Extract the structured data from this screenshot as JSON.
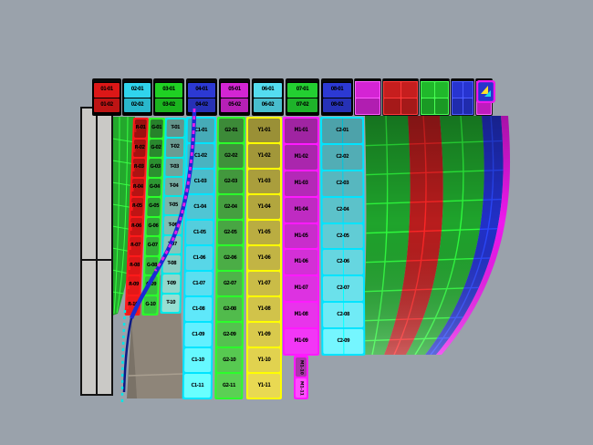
{
  "viewport": {
    "background": "#9aa2ab"
  },
  "left_panel": {
    "fill": "#cac9c6",
    "outline": "#131313"
  },
  "header_row": {
    "blocks": [
      {
        "id": "hb1",
        "color": "#d81717",
        "labels": [
          "01-01",
          "01-02"
        ]
      },
      {
        "id": "hb2",
        "color": "#2fd0e8",
        "labels": [
          "02-01",
          "02-02"
        ]
      },
      {
        "id": "hb3",
        "color": "#1ecc22",
        "labels": [
          "03-01",
          "03-02"
        ]
      },
      {
        "id": "hb4",
        "color": "#2b38cf",
        "labels": [
          "04-01",
          "04-02"
        ]
      },
      {
        "id": "hb5",
        "color": "#cf24cf",
        "labels": [
          "05-01",
          "05-02"
        ]
      },
      {
        "id": "hb6",
        "color": "#52d8ea",
        "labels": [
          "06-01",
          "06-02"
        ]
      },
      {
        "id": "hb7",
        "color": "#22cb30",
        "labels": [
          "07-01",
          "07-02"
        ]
      },
      {
        "id": "hb8",
        "color": "#2b38cf",
        "labels": [
          "08-01",
          "08-02"
        ]
      }
    ]
  },
  "bowl_top": {
    "blocks": [
      {
        "id": "bt-magenta",
        "color": "#d023d0",
        "line": "#ff5cff"
      },
      {
        "id": "bt-red",
        "color": "#c21d1d",
        "line": "#ff3a3a"
      },
      {
        "id": "bt-green",
        "color": "#1fb42a",
        "line": "#49ff55"
      },
      {
        "id": "bt-blue",
        "color": "#2633cc",
        "line": "#4b5cff"
      },
      {
        "id": "bt-rim",
        "color": "#e020e0",
        "line": "#ff6cff"
      }
    ]
  },
  "strips": [
    {
      "id": "red",
      "border": "#ff1a1a",
      "fill": "#bf1414",
      "tab": "#ff1a1a",
      "labels": [
        "R-01",
        "R-02",
        "R-03",
        "R-04",
        "R-05",
        "R-06",
        "R-07",
        "R-08",
        "R-09",
        "R-10"
      ]
    },
    {
      "id": "greensm",
      "border": "#2bff2b",
      "fill": "#2f9e35",
      "labels": [
        "G-01",
        "G-02",
        "G-03",
        "G-04",
        "G-05",
        "G-06",
        "G-07",
        "G-08",
        "G-09",
        "G-10"
      ]
    },
    {
      "id": "teal",
      "border": "#00e8e8",
      "fill": "#7ab4aa",
      "labels": [
        "T-01",
        "T-02",
        "T-03",
        "T-04",
        "T-05",
        "T-06",
        "T-07",
        "T-08",
        "T-09",
        "T-10"
      ]
    },
    {
      "id": "cyan",
      "border": "#00e4ff",
      "fill": "#55d0e0",
      "labels": [
        "C1-01",
        "C1-02",
        "C1-03",
        "C1-04",
        "C1-05",
        "C1-06",
        "C1-07",
        "C1-08",
        "C1-09",
        "C1-10",
        "C1-11"
      ]
    },
    {
      "id": "green",
      "border": "#2bff2b",
      "fill": "#49a844",
      "labels": [
        "G2-01",
        "G2-02",
        "G2-03",
        "G2-04",
        "G2-05",
        "G2-06",
        "G2-07",
        "G2-08",
        "G2-09",
        "G2-10",
        "G2-11"
      ]
    },
    {
      "id": "yellow",
      "border": "#ffff00",
      "fill": "#bcaf42",
      "labels": [
        "Y1-01",
        "Y1-02",
        "Y1-03",
        "Y1-04",
        "Y1-05",
        "Y1-06",
        "Y1-07",
        "Y1-08",
        "Y1-09",
        "Y1-10",
        "Y1-11"
      ]
    },
    {
      "id": "magenta",
      "border": "#ff1aff",
      "fill": "#c32cc6",
      "labels": [
        "M1-01",
        "M1-02",
        "M1-03",
        "M1-04",
        "M1-05",
        "M1-06",
        "M1-07",
        "M1-08",
        "M1-09"
      ]
    },
    {
      "id": "cyan2",
      "border": "#00e4ff",
      "fill": "#5ec6cf",
      "labels": [
        "C2-01",
        "C2-02",
        "C2-03",
        "C2-04",
        "C2-05",
        "C2-06",
        "C2-07",
        "C2-08",
        "C2-09"
      ]
    },
    {
      "id": "magenta-ext",
      "border": "#ff1aff",
      "fill": "#d03fd0",
      "labels": [
        "M1-10",
        "M1-11"
      ]
    }
  ],
  "wireframe": {
    "fill": "#23a82c",
    "line": "#39ff45"
  },
  "shadow": {
    "fill": "#8e8579",
    "edge": "#a99f90"
  },
  "curves": {
    "s_curve": "#1a2ad4",
    "s_curve_dash": "#e81ee8",
    "lower": "#0c1a86",
    "bottom_dash": "#00e8e8"
  },
  "bowl": {
    "bands": [
      {
        "id": "band-green-a",
        "fill": "#1fa42c",
        "line": "#2eff3e"
      },
      {
        "id": "band-red",
        "fill": "#b81d1d",
        "line": "#ff2626"
      },
      {
        "id": "band-green-b",
        "fill": "#1fa42c",
        "line": "#2eff3e"
      },
      {
        "id": "band-blue",
        "fill": "#2130c8",
        "line": "#2a48ff"
      },
      {
        "id": "band-rim",
        "fill": "#ee19ee",
        "line": "#ff6cff"
      }
    ]
  },
  "nav_glyph": {
    "box": "#2734cc",
    "frame": "#ee19ee",
    "triangle": "#ffe12b",
    "arrow": "#19d8e8"
  }
}
